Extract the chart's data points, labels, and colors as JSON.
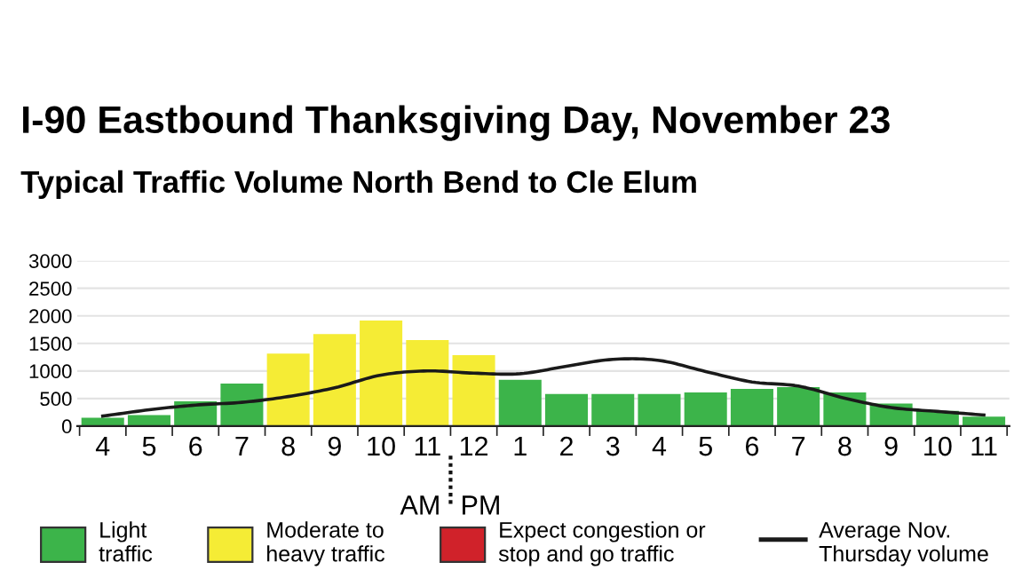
{
  "chart_data": {
    "type": "bar",
    "title": "I-90 Eastbound Thanksgiving Day, November 23",
    "subtitle": "Typical Traffic Volume North Bend to Cle Elum",
    "categories": [
      "4",
      "5",
      "6",
      "7",
      "8",
      "9",
      "10",
      "11",
      "12",
      "1",
      "2",
      "3",
      "4",
      "5",
      "6",
      "7",
      "8",
      "9",
      "10",
      "11"
    ],
    "series": [
      {
        "name": "Light\ntraffic",
        "color": "#3cb44a",
        "values": [
          150,
          200,
          450,
          770,
          null,
          null,
          null,
          null,
          null,
          840,
          580,
          580,
          580,
          610,
          675,
          705,
          610,
          410,
          275,
          170
        ]
      },
      {
        "name": "Moderate to\nheavy traffic",
        "color": "#f5ec35",
        "values": [
          null,
          null,
          null,
          null,
          1315,
          1670,
          1915,
          1560,
          1285,
          null,
          null,
          null,
          null,
          null,
          null,
          null,
          null,
          null,
          null,
          null
        ]
      },
      {
        "name": "Expect congestion or\nstop and go traffic",
        "color": "#d0222a",
        "values": [
          null,
          null,
          null,
          null,
          null,
          null,
          null,
          null,
          null,
          null,
          null,
          null,
          null,
          null,
          null,
          null,
          null,
          null,
          null,
          null
        ]
      },
      {
        "name": "Average Nov.\nThursday volume",
        "type": "line",
        "color": "#1a1a1a",
        "values": [
          180,
          295,
          380,
          430,
          535,
          695,
          925,
          1000,
          960,
          950,
          1085,
          1210,
          1190,
          990,
          800,
          725,
          505,
          335,
          265,
          200
        ]
      }
    ],
    "annotations": [
      "AM",
      "PM"
    ],
    "ylim": [
      0,
      3000
    ],
    "yticks": [
      0,
      500,
      1000,
      1500,
      2000,
      2500,
      3000
    ],
    "grid": "y",
    "legend": "bottom"
  }
}
